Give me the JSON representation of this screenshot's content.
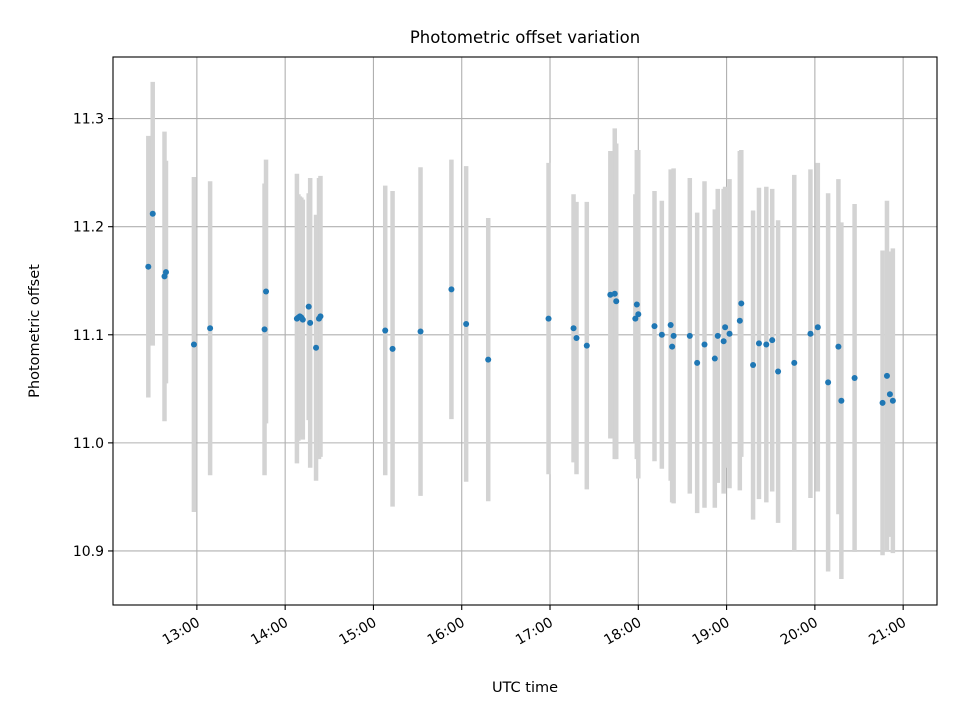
{
  "chart_data": {
    "type": "scatter",
    "title": "Photometric offset variation",
    "xlabel": "UTC time",
    "ylabel": "Photometric offset",
    "x_tick_labels": [
      "13:00",
      "14:00",
      "15:00",
      "16:00",
      "17:00",
      "18:00",
      "19:00",
      "20:00",
      "21:00"
    ],
    "y_tick_labels": [
      "10.9",
      "11.0",
      "11.1",
      "11.2",
      "11.3"
    ],
    "y_ticks": [
      10.9,
      11.0,
      11.1,
      11.2,
      11.3
    ],
    "xlim": [
      "12:03",
      "21:23"
    ],
    "ylim": [
      10.85,
      11.357
    ],
    "grid": true,
    "colors": {
      "points": "#1f77b4",
      "errorbars": "#d3d3d3",
      "grid": "#b0b0b0"
    },
    "series": [
      {
        "x": [
          "12:27",
          "12:30",
          "12:38",
          "12:39",
          "12:58",
          "13:09",
          "13:46",
          "13:47",
          "14:08",
          "14:09",
          "14:10",
          "14:11",
          "14:12",
          "14:16",
          "14:17",
          "14:21",
          "14:23",
          "14:24",
          "15:08",
          "15:13",
          "15:32",
          "15:53",
          "16:03",
          "16:18",
          "16:59",
          "17:16",
          "17:18",
          "17:25",
          "17:41",
          "17:44",
          "17:45",
          "17:58",
          "17:59",
          "18:00",
          "18:11",
          "18:16",
          "18:22",
          "18:23",
          "18:24",
          "18:35",
          "18:40",
          "18:45",
          "18:52",
          "18:54",
          "18:58",
          "18:59",
          "19:02",
          "19:09",
          "19:10",
          "19:18",
          "19:22",
          "19:27",
          "19:31",
          "19:35",
          "19:46",
          "19:57",
          "20:02",
          "20:09",
          "20:16",
          "20:18",
          "20:27",
          "20:46",
          "20:49",
          "20:51",
          "20:53"
        ],
        "y": [
          11.163,
          11.212,
          11.154,
          11.158,
          11.091,
          11.106,
          11.105,
          11.14,
          11.115,
          11.116,
          11.117,
          11.116,
          11.114,
          11.126,
          11.111,
          11.088,
          11.115,
          11.117,
          11.104,
          11.087,
          11.103,
          11.142,
          11.11,
          11.077,
          11.115,
          11.106,
          11.097,
          11.09,
          11.137,
          11.138,
          11.131,
          11.115,
          11.128,
          11.119,
          11.108,
          11.1,
          11.109,
          11.089,
          11.099,
          11.099,
          11.074,
          11.091,
          11.078,
          11.099,
          11.094,
          11.107,
          11.101,
          11.113,
          11.129,
          11.072,
          11.092,
          11.091,
          11.095,
          11.066,
          11.074,
          11.101,
          11.107,
          11.056,
          11.089,
          11.039,
          11.06,
          11.037,
          11.062,
          11.045,
          11.039
        ],
        "err": [
          0.121,
          0.122,
          0.134,
          0.103,
          0.155,
          0.136,
          0.135,
          0.122,
          0.134,
          0.114,
          0.111,
          0.111,
          0.111,
          0.105,
          0.134,
          0.123,
          0.13,
          0.13,
          0.134,
          0.146,
          0.152,
          0.12,
          0.146,
          0.131,
          0.144,
          0.124,
          0.126,
          0.133,
          0.133,
          0.153,
          0.146,
          0.115,
          0.143,
          0.152,
          0.125,
          0.124,
          0.144,
          0.144,
          0.155,
          0.146,
          0.139,
          0.151,
          0.138,
          0.136,
          0.141,
          0.13,
          0.143,
          0.157,
          0.142,
          0.143,
          0.144,
          0.146,
          0.14,
          0.14,
          0.174,
          0.152,
          0.152,
          0.175,
          0.155,
          0.165,
          0.161,
          0.141,
          0.162,
          0.132,
          0.141
        ]
      }
    ]
  }
}
